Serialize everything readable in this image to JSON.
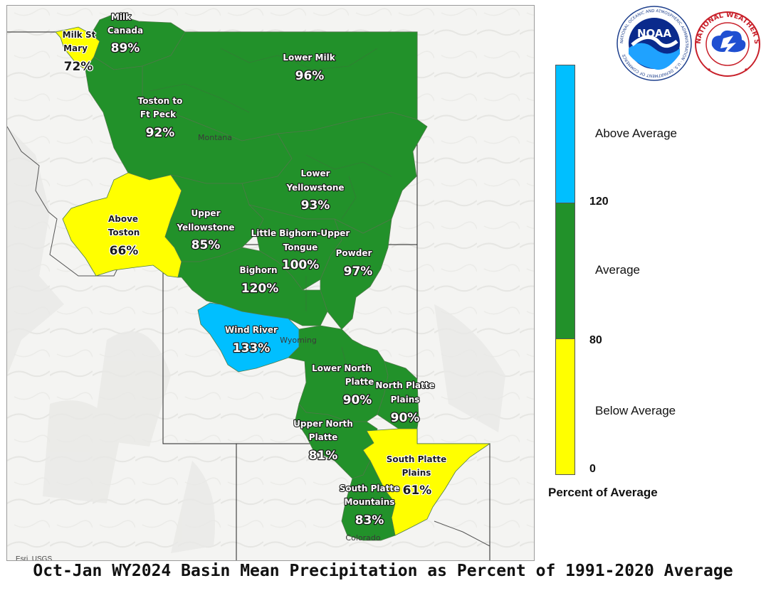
{
  "title": "Oct-Jan WY2024 Basin Mean Precipitation as Percent of 1991-2020 Average",
  "credit": "Esri, USGS",
  "colors": {
    "above": "#00bfff",
    "average": "#22912a",
    "below": "#ffff00",
    "basin_border": "#5b7d56"
  },
  "legend": {
    "title": "Percent of Average",
    "categories": [
      {
        "label": "Above Average",
        "color": "#00bfff"
      },
      {
        "label": "Average",
        "color": "#22912a"
      },
      {
        "label": "Below Average",
        "color": "#ffff00"
      }
    ],
    "ticks": [
      "120",
      "80",
      "0"
    ]
  },
  "states": [
    "Montana",
    "Wyoming",
    "Colorado"
  ],
  "basins": [
    {
      "id": "milk-canada",
      "name1": "Milk",
      "name2": "Canada",
      "pct": "89%",
      "category": "average"
    },
    {
      "id": "milk-st-mary",
      "name1": "Milk St",
      "name2": "Mary",
      "pct": "72%",
      "category": "below"
    },
    {
      "id": "lower-milk",
      "name1": "Lower Milk",
      "name2": "",
      "pct": "96%",
      "category": "average"
    },
    {
      "id": "toston-ft-peck",
      "name1": "Toston to",
      "name2": "Ft Peck",
      "pct": "92%",
      "category": "average"
    },
    {
      "id": "lower-yellowstone",
      "name1": "Lower",
      "name2": "Yellowstone",
      "pct": "93%",
      "category": "average"
    },
    {
      "id": "above-toston",
      "name1": "Above",
      "name2": "Toston",
      "pct": "66%",
      "category": "below"
    },
    {
      "id": "upper-yellowstone",
      "name1": "Upper",
      "name2": "Yellowstone",
      "pct": "85%",
      "category": "average"
    },
    {
      "id": "little-bighorn",
      "name1": "Little Bighorn-Upper",
      "name2": "Tongue",
      "pct": "100%",
      "category": "average"
    },
    {
      "id": "powder",
      "name1": "Powder",
      "name2": "",
      "pct": "97%",
      "category": "average"
    },
    {
      "id": "bighorn",
      "name1": "Bighorn",
      "name2": "",
      "pct": "120%",
      "category": "average"
    },
    {
      "id": "wind-river",
      "name1": "Wind River",
      "name2": "",
      "pct": "133%",
      "category": "above"
    },
    {
      "id": "lower-north-platte",
      "name1": "Lower North",
      "name2": "Platte",
      "pct": "90%",
      "category": "average"
    },
    {
      "id": "north-platte-plains",
      "name1": "North Platte",
      "name2": "Plains",
      "pct": "90%",
      "category": "average"
    },
    {
      "id": "upper-north-platte",
      "name1": "Upper North",
      "name2": "Platte",
      "pct": "81%",
      "category": "average"
    },
    {
      "id": "south-platte-plains",
      "name1": "South Platte",
      "name2": "Plains",
      "pct": "61%",
      "category": "below"
    },
    {
      "id": "south-platte-mountains",
      "name1": "South Platte",
      "name2": "Mountains",
      "pct": "83%",
      "category": "average"
    }
  ],
  "logos": {
    "noaa_text": "NOAA",
    "noaa_ring": "NATIONAL OCEANIC AND ATMOSPHERIC ADMINISTRATION · U.S. DEPARTMENT OF COMMERCE",
    "nws_ring": "NATIONAL WEATHER SERVICE"
  }
}
